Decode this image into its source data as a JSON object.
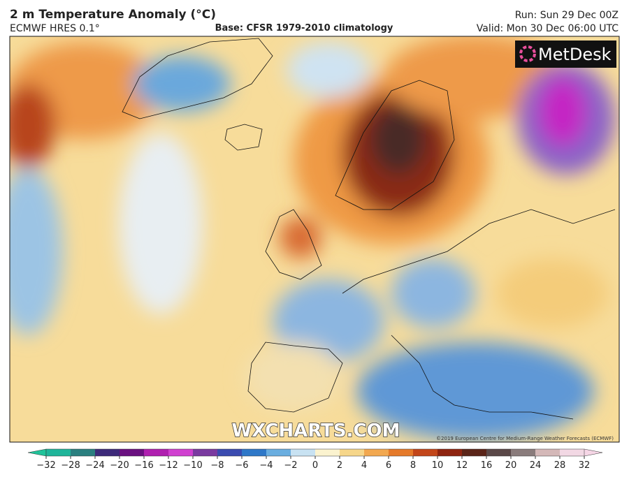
{
  "header": {
    "title": "2 m Temperature Anomaly (°C)",
    "model": "ECMWF HRES 0.1°",
    "base": "Base: CFSR 1979-2010 climatology",
    "run": "Run: Sun 29 Dec 00Z",
    "valid": "Valid: Mon 30 Dec 06:00 UTC"
  },
  "logo": "MetDesk",
  "watermark": "WXCHARTS.COM",
  "credit": "©2019 European Centre for Medium-Range Weather Forecasts (ECMWF)",
  "colorbar": {
    "ticks": [
      {
        "value": -32,
        "label": "−32"
      },
      {
        "value": -28,
        "label": "−28"
      },
      {
        "value": -24,
        "label": "−24"
      },
      {
        "value": -20,
        "label": "−20"
      },
      {
        "value": -16,
        "label": "−16"
      },
      {
        "value": -12,
        "label": "−12"
      },
      {
        "value": -10,
        "label": "−10"
      },
      {
        "value": -8,
        "label": "−8"
      },
      {
        "value": -6,
        "label": "−6"
      },
      {
        "value": -4,
        "label": "−4"
      },
      {
        "value": -2,
        "label": "−2"
      },
      0,
      2,
      4,
      6,
      8,
      10,
      12,
      16,
      20,
      24,
      28,
      32
    ],
    "colors": [
      "#1fb59a",
      "#2a7f7f",
      "#3d2a7a",
      "#6a1080",
      "#b020b0",
      "#d040d0",
      "#7a3aa0",
      "#3a4bb0",
      "#2f78c8",
      "#6aaee0",
      "#c8e2f2",
      "#fbf3cf",
      "#f6d68a",
      "#f2a850",
      "#e57a2a",
      "#c2461a",
      "#8e2410",
      "#5a2418",
      "#5a4848",
      "#8a7c7c",
      "#d4b8b8",
      "#f2d8e4"
    ],
    "under": "#20c39a",
    "over": "#f6d6e6"
  }
}
